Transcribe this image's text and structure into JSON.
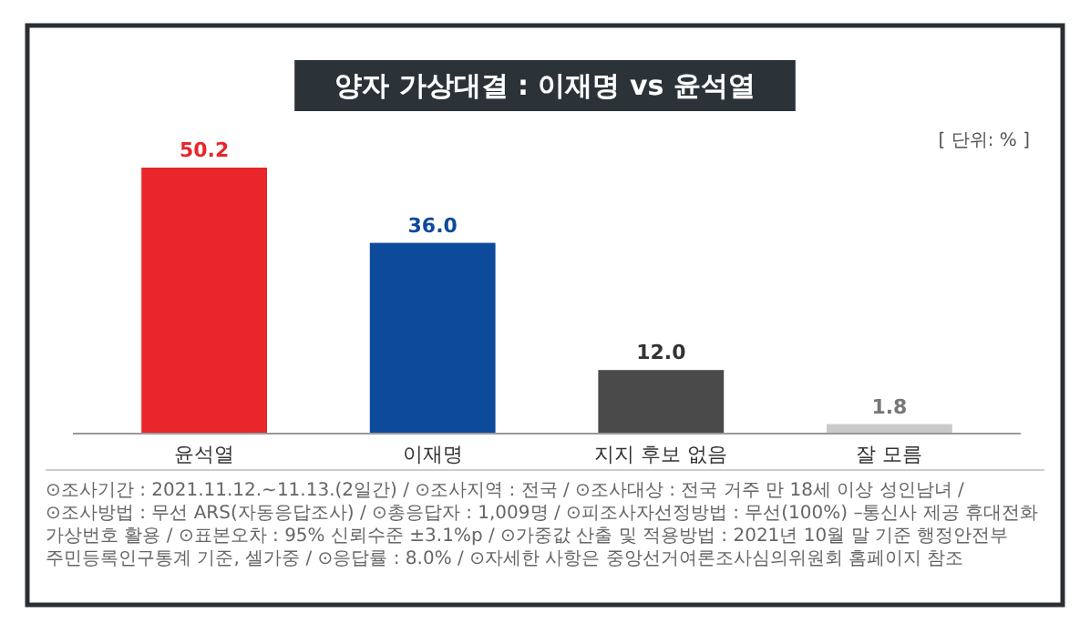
{
  "chart_data": {
    "type": "bar",
    "title": "양자 가상대결 : 이재명 vs 윤석열",
    "categories": [
      "윤석열",
      "이재명",
      "지지 후보 없음",
      "잘 모름"
    ],
    "values": [
      50.2,
      36.0,
      12.0,
      1.8
    ],
    "value_labels": [
      "50.2",
      "36.0",
      "12.0",
      "1.8"
    ],
    "colors": [
      "#e8262b",
      "#0d4a9c",
      "#4a4a4a",
      "#c9c9c9"
    ],
    "annotations": [
      "[ 단위: % ]",
      "⊙조사기간 : 2021.11.12.~11.13.(2일간) /",
      "⊙조사지역 : 전국 /",
      "⊙조사대상 : 전국 거주 만 18세 이상 성인남녀 /",
      "⊙조사방법 : 무선 ARS(자동응답조사) /",
      "⊙총응답자 : 1,009명 /",
      "⊙피조사자선정방법 : 무선(100%) –통신사 제공 휴대전화 가상번호 활용 /",
      "⊙표본오차 : 95% 신뢰수준 ±3.1%p /",
      "⊙가중값 산출 및 적용방법 : 2021년 10월 말 기준 행정안전부 주민등록인구통계 기준, 셀가중 /",
      "⊙응답률 : 8.0% /",
      "⊙자세한 사항은 중앙선거여론조사심의위원회 홈페이지 참조"
    ]
  }
}
